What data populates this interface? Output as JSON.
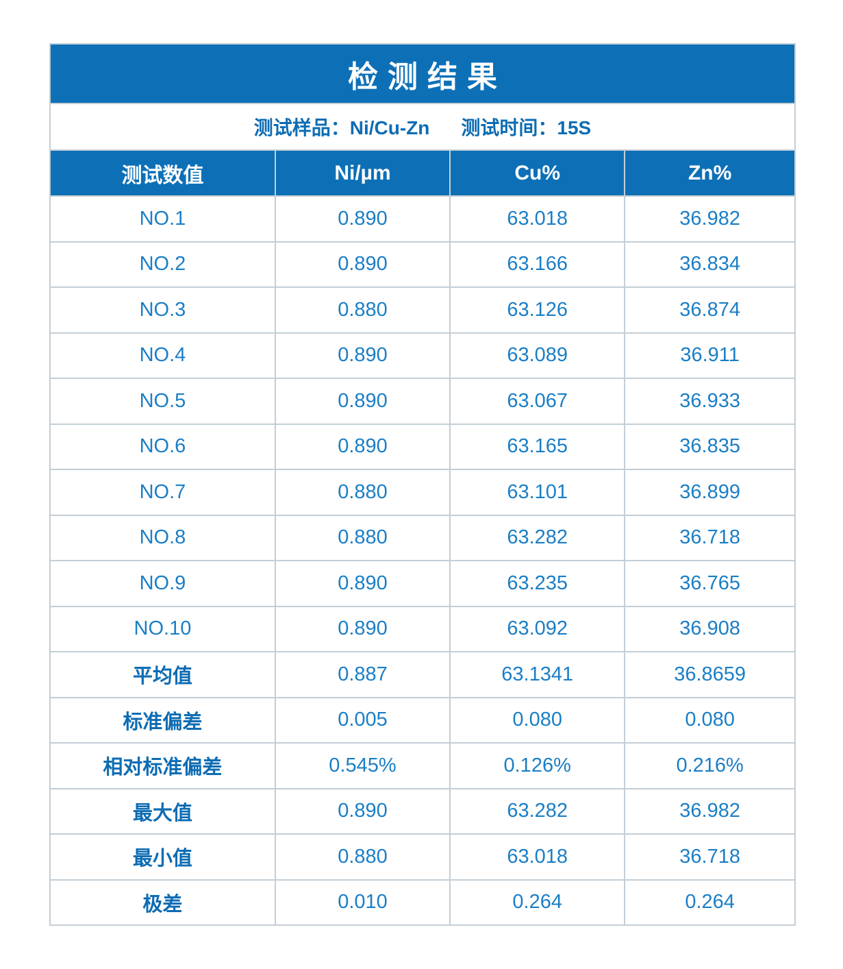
{
  "chart_data": {
    "type": "table",
    "title": "检测结果",
    "subtitle_sample": "测试样品：Ni/Cu-Zn",
    "subtitle_time": "测试时间：15S",
    "columns": [
      "测试数值",
      "Ni/µm",
      "Cu%",
      "Zn%"
    ],
    "rows": [
      {
        "label": "NO.1",
        "values": [
          "0.890",
          "63.018",
          "36.982"
        ]
      },
      {
        "label": "NO.2",
        "values": [
          "0.890",
          "63.166",
          "36.834"
        ]
      },
      {
        "label": "NO.3",
        "values": [
          "0.880",
          "63.126",
          "36.874"
        ]
      },
      {
        "label": "NO.4",
        "values": [
          "0.890",
          "63.089",
          "36.911"
        ]
      },
      {
        "label": "NO.5",
        "values": [
          "0.890",
          "63.067",
          "36.933"
        ]
      },
      {
        "label": "NO.6",
        "values": [
          "0.890",
          "63.165",
          "36.835"
        ]
      },
      {
        "label": "NO.7",
        "values": [
          "0.880",
          "63.101",
          "36.899"
        ]
      },
      {
        "label": "NO.8",
        "values": [
          "0.880",
          "63.282",
          "36.718"
        ]
      },
      {
        "label": "NO.9",
        "values": [
          "0.890",
          "63.235",
          "36.765"
        ]
      },
      {
        "label": "NO.10",
        "values": [
          "0.890",
          "63.092",
          "36.908"
        ]
      }
    ],
    "summary_rows": [
      {
        "label": "平均值",
        "values": [
          "0.887",
          "63.1341",
          "36.8659"
        ]
      },
      {
        "label": "标准偏差",
        "values": [
          "0.005",
          "0.080",
          "0.080"
        ]
      },
      {
        "label": "相对标准偏差",
        "values": [
          "0.545%",
          "0.126%",
          "0.216%"
        ]
      },
      {
        "label": "最大值",
        "values": [
          "0.890",
          "63.282",
          "36.982"
        ]
      },
      {
        "label": "最小值",
        "values": [
          "0.880",
          "63.018",
          "36.718"
        ]
      },
      {
        "label": "极差",
        "values": [
          "0.010",
          "0.264",
          "0.264"
        ]
      }
    ],
    "layout": {
      "grid": "off",
      "column_widths_pct": [
        30.1,
        23.5,
        23.5,
        22.9
      ]
    },
    "colors": {
      "accent_blue": "#0d70b7",
      "label_blue": "#0d6cb3",
      "value_blue": "#1a7ec6",
      "border_gray": "#c3ced6",
      "header_text": "#ffffff"
    }
  }
}
